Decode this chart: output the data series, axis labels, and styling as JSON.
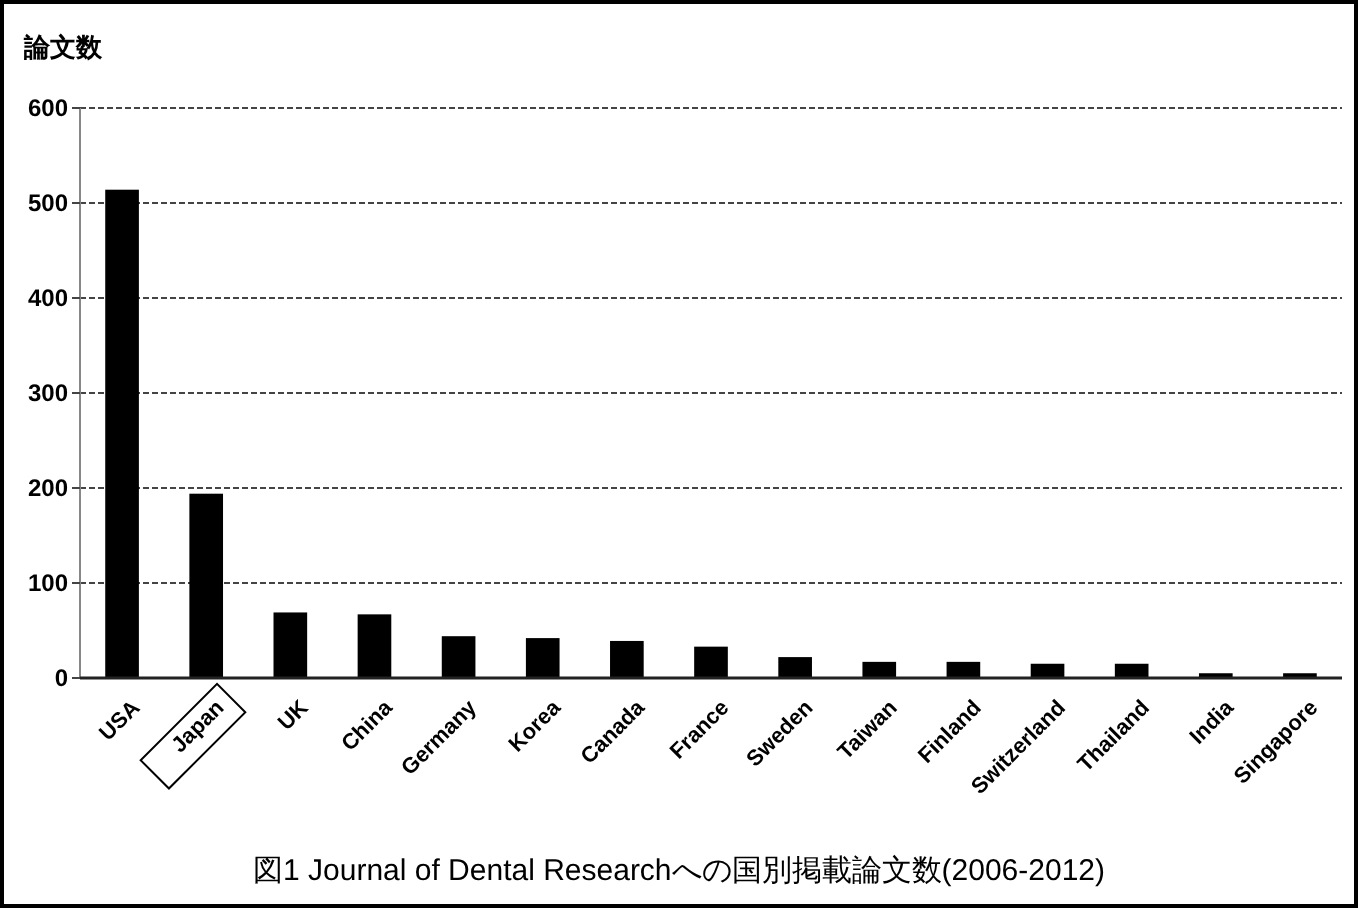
{
  "chart_data": {
    "type": "bar",
    "title": "図1 Journal of Dental Researchへの国別掲載論文数(2006-2012)",
    "ylabel": "論文数",
    "categories": [
      "USA",
      "Japan",
      "UK",
      "China",
      "Germany",
      "Korea",
      "Canada",
      "France",
      "Sweden",
      "Taiwan",
      "Finland",
      "Switzerland",
      "Thailand",
      "India",
      "Singapore"
    ],
    "values": [
      514,
      194,
      69,
      67,
      44,
      42,
      39,
      33,
      22,
      17,
      17,
      15,
      15,
      5,
      5
    ],
    "color": "#000000",
    "ylim": [
      0,
      600
    ],
    "yticks": [
      0,
      100,
      200,
      300,
      400,
      500,
      600
    ],
    "grid": "y"
  }
}
